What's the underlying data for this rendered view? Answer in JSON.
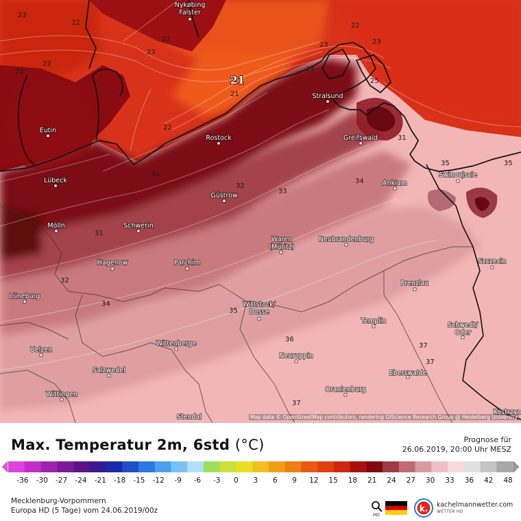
{
  "map": {
    "cities": [
      {
        "name": "Nykøbing\nFalster"
      },
      {
        "name": "Eutin"
      },
      {
        "name": "Lübeck"
      },
      {
        "name": "Rostock"
      },
      {
        "name": "Stralsund"
      },
      {
        "name": "Greifswald"
      },
      {
        "name": "Anklam"
      },
      {
        "name": "Swinoujscie"
      },
      {
        "name": "Güstrow"
      },
      {
        "name": "Mölln"
      },
      {
        "name": "Schwerin"
      },
      {
        "name": "Waren\n(Müritz)"
      },
      {
        "name": "Neubrandenburg"
      },
      {
        "name": "Hagenow"
      },
      {
        "name": "Parchim"
      },
      {
        "name": "Szczecin"
      },
      {
        "name": "Prenzlau"
      },
      {
        "name": "Lüneburg"
      },
      {
        "name": "Wittstock/\nDosse"
      },
      {
        "name": "Templin"
      },
      {
        "name": "Schwedt/\nOder"
      },
      {
        "name": "Wittenberge"
      },
      {
        "name": "Uelzen"
      },
      {
        "name": "Neuruppin"
      },
      {
        "name": "Salzwedel"
      },
      {
        "name": "Eberswalde"
      },
      {
        "name": "Wittingen"
      },
      {
        "name": "Oranienburg"
      },
      {
        "name": "Stendal"
      },
      {
        "name": "Kostrzyn"
      }
    ],
    "isolines": [
      {
        "value": "22"
      },
      {
        "value": "22"
      },
      {
        "value": "23"
      },
      {
        "value": "23"
      },
      {
        "value": "22"
      },
      {
        "value": "22"
      },
      {
        "value": "23"
      },
      {
        "value": "21"
      },
      {
        "value": "21"
      },
      {
        "value": "22"
      },
      {
        "value": "23"
      },
      {
        "value": "30"
      },
      {
        "value": "32"
      },
      {
        "value": "33"
      },
      {
        "value": "34"
      },
      {
        "value": "31"
      },
      {
        "value": "32"
      },
      {
        "value": "34"
      },
      {
        "value": "35"
      },
      {
        "value": "36"
      },
      {
        "value": "37"
      },
      {
        "value": "37"
      },
      {
        "value": "37"
      },
      {
        "value": "35"
      },
      {
        "value": "35"
      },
      {
        "value": "31"
      },
      {
        "value": "23"
      },
      {
        "value": "25"
      },
      {
        "value": "24"
      }
    ],
    "attribution": "Map data © OpenStreetMap contributors, rendering GIScience Research Group @ Heidelberg University"
  },
  "legend": {
    "title": "Max. Temperatur 2m, 6std",
    "unit": "(°C)",
    "prognose_label": "Prognose für",
    "prognose_date": "26.06.2019, 20:00 Uhr MESZ",
    "tick_labels": [
      "-36",
      "-30",
      "-27",
      "-24",
      "-21",
      "-18",
      "-15",
      "-12",
      "-9",
      "-6",
      "-3",
      "0",
      "3",
      "6",
      "9",
      "12",
      "15",
      "18",
      "21",
      "24",
      "27",
      "30",
      "33",
      "36",
      "42",
      "48"
    ],
    "region": "Mecklenburg-Vorpommern",
    "model": "Europa HD (5 Tage) vom 24.06.2019/00z",
    "hd_label": "HD",
    "logo_name": "kachelmannwetter.com",
    "logo_sub": "WETTER HD",
    "colors": {
      "sea_warm": "#d42f10",
      "sea_cool": "#e8481a",
      "land_hot": "#7a0a10",
      "land_warm": "#b0565e",
      "land_mid": "#d88f93",
      "land_light": "#f4bcbc"
    }
  }
}
